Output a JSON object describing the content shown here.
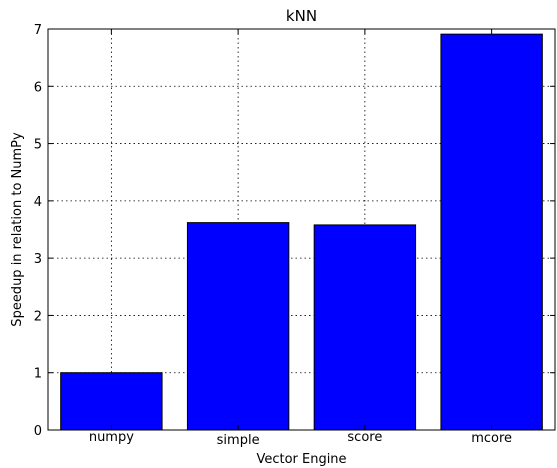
{
  "chart_data": {
    "type": "bar",
    "title": "kNN",
    "xlabel": "Vector Engine",
    "ylabel": "Speedup in relation to NumPy",
    "categories": [
      "numpy",
      "simple",
      "score",
      "mcore"
    ],
    "values": [
      1.0,
      3.62,
      3.58,
      6.91
    ],
    "ylim": [
      0,
      7
    ],
    "yticks": [
      "0",
      "1",
      "2",
      "3",
      "4",
      "5",
      "6",
      "7"
    ],
    "grid": true,
    "bar_color": "#0000ff",
    "edge_color": "#000000"
  }
}
